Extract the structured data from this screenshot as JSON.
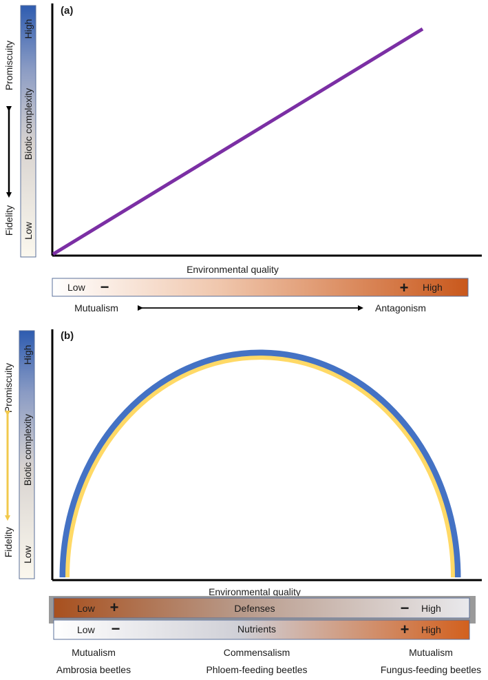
{
  "panel_a": {
    "label": "(a)",
    "y_axis": {
      "bar_low": "Low",
      "bar_high": "High",
      "bar_middle": "Biotic complexity",
      "bottom_label": "Fidelity",
      "top_label": "Promiscuity"
    },
    "x_axis_title": "Environmental quality",
    "x_bar": {
      "low": "Low",
      "minus": "−",
      "plus": "+",
      "high": "High"
    },
    "interaction_left": "Mutualism",
    "interaction_right": "Antagonism",
    "line_color": "#7b2fa4"
  },
  "panel_b": {
    "label": "(b)",
    "y_axis": {
      "bar_low": "Low",
      "bar_high": "High",
      "bar_middle": "Biotic complexity",
      "bottom_label": "Fidelity",
      "top_label": "Promiscuity"
    },
    "x_axis_title": "Environmental quality",
    "defenses_bar": {
      "low": "Low",
      "plus": "+",
      "label": "Defenses",
      "minus": "−",
      "high": "High"
    },
    "nutrients_bar": {
      "low": "Low",
      "minus": "−",
      "label": "Nutrients",
      "plus": "+",
      "high": "High"
    },
    "columns": [
      {
        "interaction": "Mutualism",
        "group": "Ambrosia beetles"
      },
      {
        "interaction": "Commensalism",
        "group": "Phloem-feeding beetles"
      },
      {
        "interaction": "Mutualism",
        "group": "Fungus-feeding beetles"
      }
    ],
    "arc_outer_color": "#4472c4",
    "arc_inner_color": "#ffd966"
  }
}
